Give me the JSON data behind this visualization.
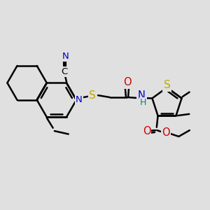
{
  "background_color": "#e0e0e0",
  "bond_color": "#000000",
  "bond_width": 1.8,
  "atom_colors": {
    "C": "#000000",
    "N": "#0000cc",
    "O": "#cc0000",
    "S": "#bbaa00",
    "H": "#008888"
  },
  "font_size": 9.5
}
